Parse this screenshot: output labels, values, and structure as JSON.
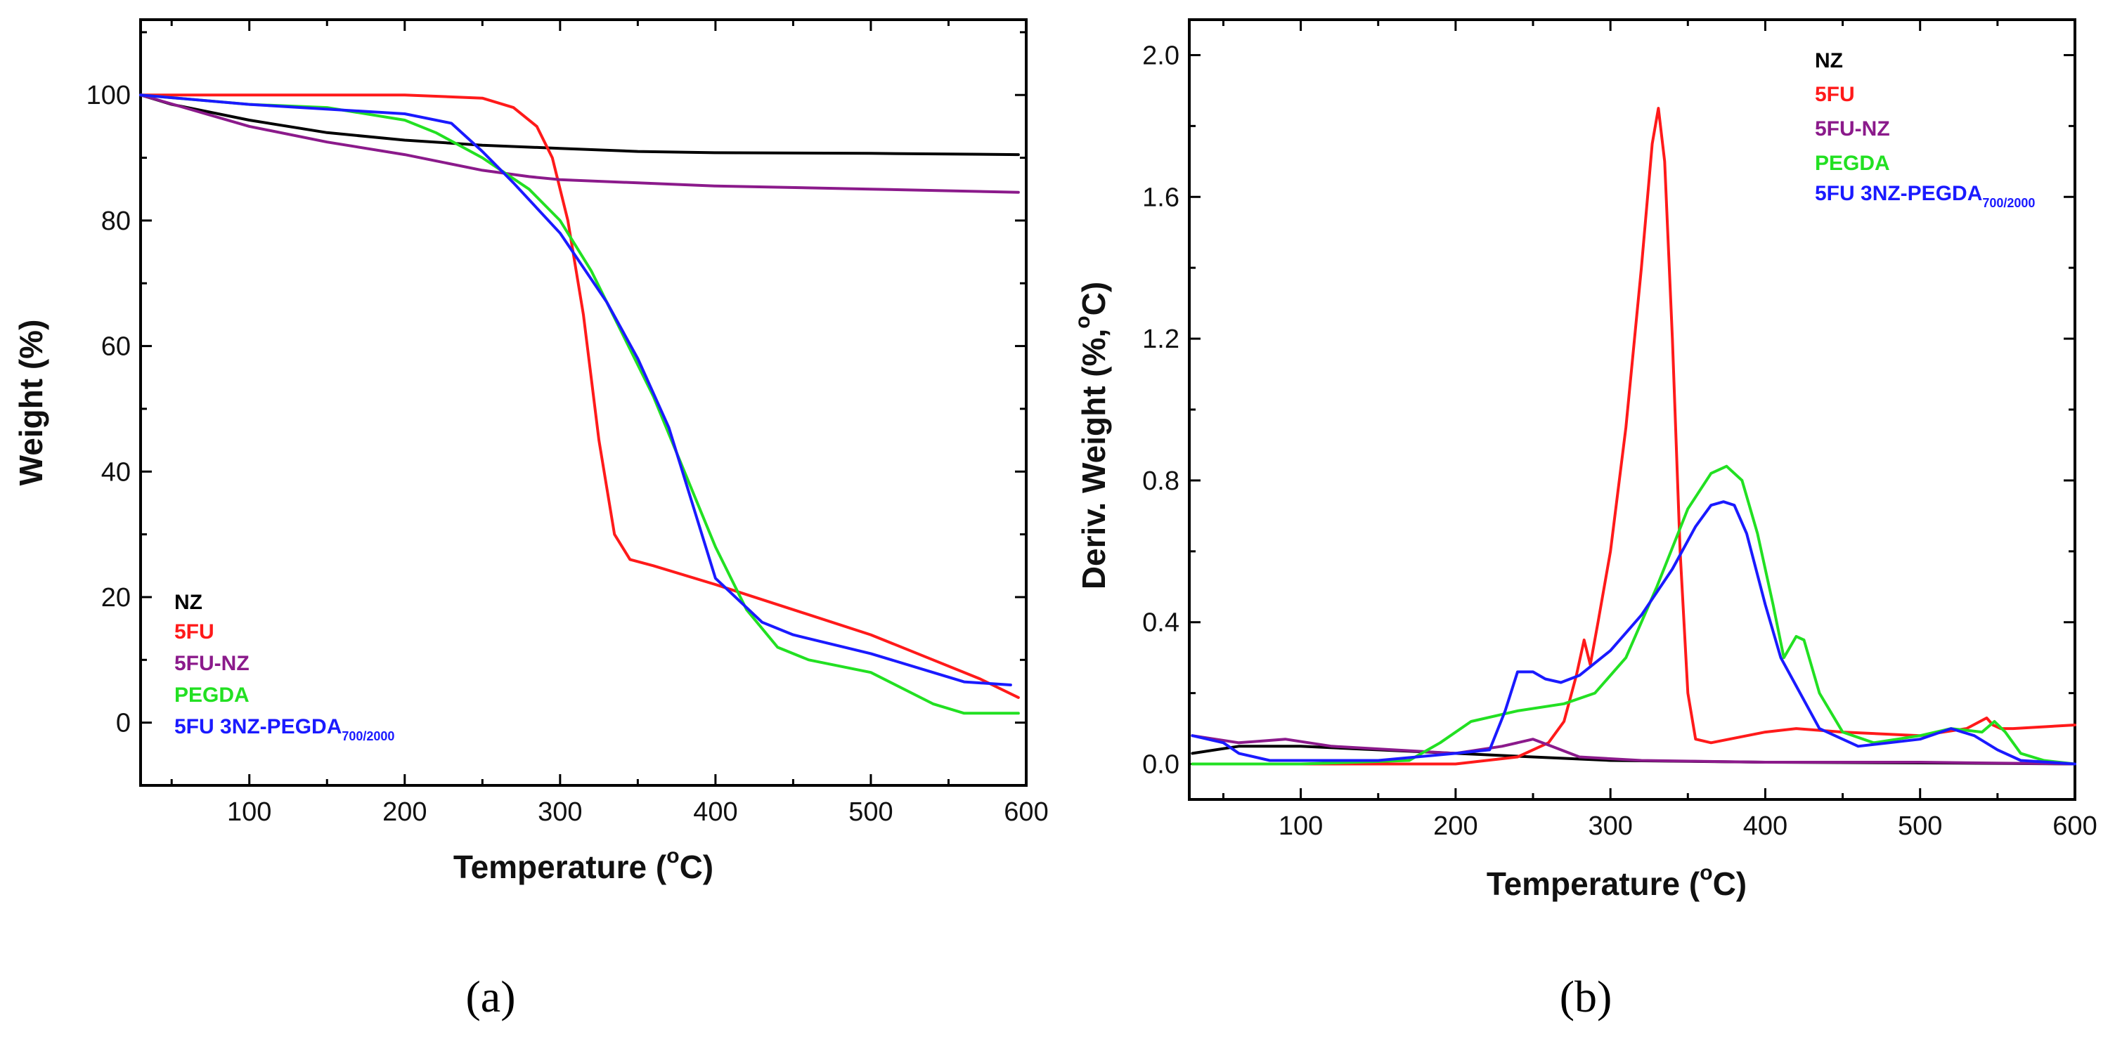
{
  "chart_data": [
    {
      "type": "line",
      "panel_label": "(a)",
      "title": "",
      "xlabel": "Temperature (°C)",
      "xlabel_main": "Temperature (",
      "xlabel_sup": "o",
      "xlabel_end": "C)",
      "ylabel": "Weight (%)",
      "xlim": [
        30,
        600
      ],
      "ylim": [
        -10,
        112
      ],
      "xticks": [
        100,
        200,
        300,
        400,
        500,
        600
      ],
      "yticks": [
        0,
        20,
        40,
        60,
        80,
        100
      ],
      "legend_position": "bottom-left",
      "legend": [
        {
          "name": "NZ",
          "color": "#000000"
        },
        {
          "name": "5FU",
          "color": "#ff1a1a"
        },
        {
          "name": "5FU-NZ",
          "color": "#8b1a8b"
        },
        {
          "name": "PEGDA",
          "color": "#22e022"
        },
        {
          "name": "5FU 3NZ-PEGDA",
          "sub": "700/2000",
          "color": "#1a1aff"
        }
      ],
      "series": [
        {
          "name": "NZ",
          "color": "#000000",
          "x": [
            30,
            50,
            100,
            150,
            200,
            250,
            300,
            350,
            400,
            500,
            595
          ],
          "y": [
            100,
            98.5,
            96,
            94,
            92.8,
            92,
            91.5,
            91,
            90.8,
            90.7,
            90.5
          ]
        },
        {
          "name": "5FU",
          "color": "#ff1a1a",
          "x": [
            30,
            100,
            200,
            250,
            270,
            285,
            295,
            305,
            315,
            325,
            335,
            345,
            360,
            400,
            450,
            500,
            540,
            570,
            595
          ],
          "y": [
            100,
            100,
            100,
            99.5,
            98,
            95,
            90,
            80,
            65,
            45,
            30,
            26,
            25,
            22,
            18,
            14,
            10,
            7,
            4
          ]
        },
        {
          "name": "5FU-NZ",
          "color": "#8b1a8b",
          "x": [
            30,
            100,
            150,
            200,
            250,
            280,
            300,
            350,
            400,
            500,
            595
          ],
          "y": [
            100,
            95,
            92.5,
            90.5,
            88,
            87,
            86.5,
            86,
            85.5,
            85,
            84.5
          ]
        },
        {
          "name": "PEGDA",
          "color": "#22e022",
          "x": [
            30,
            100,
            150,
            200,
            220,
            250,
            280,
            300,
            320,
            340,
            360,
            380,
            400,
            420,
            440,
            460,
            500,
            540,
            560,
            595
          ],
          "y": [
            100,
            98.5,
            98,
            96,
            94,
            90,
            85,
            80,
            72,
            62,
            52,
            40,
            28,
            18,
            12,
            10,
            8,
            3,
            1.5,
            1.5
          ]
        },
        {
          "name": "5FU 3NZ-PEGDA700/2000",
          "color": "#1a1aff",
          "x": [
            30,
            100,
            200,
            230,
            250,
            270,
            300,
            330,
            350,
            370,
            400,
            430,
            450,
            500,
            540,
            560,
            590
          ],
          "y": [
            100,
            98.5,
            97,
            95.5,
            91,
            86,
            78,
            67,
            58,
            47,
            23,
            16,
            14,
            11,
            8,
            6.5,
            6
          ]
        }
      ]
    },
    {
      "type": "line",
      "panel_label": "(b)",
      "title": "",
      "xlabel": "Temperature (°C)",
      "xlabel_main": "Temperature (",
      "xlabel_sup": "o",
      "xlabel_end": "C)",
      "ylabel": "Deriv. Weight (%,°C)",
      "ylabel_main": "Deriv. Weight (%,",
      "ylabel_sup": "o",
      "ylabel_end": "C)",
      "xlim": [
        28,
        600
      ],
      "ylim": [
        -0.1,
        2.1
      ],
      "xticks": [
        100,
        200,
        300,
        400,
        500,
        600
      ],
      "yticks": [
        "0.0",
        "0.4",
        "0.8",
        "1.2",
        "1.6",
        "2.0"
      ],
      "legend_position": "top-right",
      "legend": [
        {
          "name": "NZ",
          "color": "#000000"
        },
        {
          "name": "5FU",
          "color": "#ff1a1a"
        },
        {
          "name": "5FU-NZ",
          "color": "#8b1a8b"
        },
        {
          "name": "PEGDA",
          "color": "#22e022"
        },
        {
          "name": "5FU 3NZ-PEGDA",
          "sub": "700/2000",
          "color": "#1a1aff"
        }
      ],
      "series": [
        {
          "name": "NZ",
          "color": "#000000",
          "x": [
            30,
            60,
            100,
            150,
            200,
            250,
            300,
            400,
            500,
            600
          ],
          "y": [
            0.03,
            0.05,
            0.05,
            0.04,
            0.03,
            0.02,
            0.01,
            0.005,
            0.003,
            0.0
          ]
        },
        {
          "name": "5FU",
          "color": "#ff1a1a",
          "x": [
            30,
            200,
            240,
            260,
            270,
            278,
            283,
            287,
            292,
            300,
            310,
            320,
            327,
            331,
            335,
            340,
            345,
            350,
            355,
            365,
            400,
            420,
            450,
            500,
            530,
            543,
            547,
            552,
            560,
            600
          ],
          "y": [
            0.0,
            0.0,
            0.02,
            0.06,
            0.12,
            0.25,
            0.35,
            0.28,
            0.4,
            0.6,
            0.95,
            1.4,
            1.75,
            1.85,
            1.7,
            1.2,
            0.6,
            0.2,
            0.07,
            0.06,
            0.09,
            0.1,
            0.09,
            0.08,
            0.1,
            0.13,
            0.11,
            0.1,
            0.1,
            0.11
          ]
        },
        {
          "name": "5FU-NZ",
          "color": "#8b1a8b",
          "x": [
            30,
            60,
            90,
            120,
            160,
            200,
            230,
            250,
            262,
            280,
            320,
            400,
            500,
            600
          ],
          "y": [
            0.08,
            0.06,
            0.07,
            0.05,
            0.04,
            0.03,
            0.05,
            0.07,
            0.05,
            0.02,
            0.01,
            0.005,
            0.005,
            0.0
          ]
        },
        {
          "name": "PEGDA",
          "color": "#22e022",
          "x": [
            30,
            100,
            170,
            190,
            210,
            240,
            270,
            290,
            310,
            330,
            350,
            365,
            375,
            385,
            395,
            405,
            412,
            420,
            425,
            435,
            450,
            470,
            500,
            520,
            540,
            548,
            555,
            565,
            580,
            600
          ],
          "y": [
            0.0,
            0.0,
            0.01,
            0.06,
            0.12,
            0.15,
            0.17,
            0.2,
            0.3,
            0.5,
            0.72,
            0.82,
            0.84,
            0.8,
            0.65,
            0.45,
            0.3,
            0.36,
            0.35,
            0.2,
            0.09,
            0.06,
            0.08,
            0.1,
            0.09,
            0.12,
            0.09,
            0.03,
            0.01,
            0.0
          ]
        },
        {
          "name": "5FU 3NZ-PEGDA700/2000",
          "color": "#1a1aff",
          "x": [
            30,
            50,
            60,
            80,
            150,
            200,
            222,
            232,
            240,
            250,
            258,
            268,
            280,
            300,
            320,
            340,
            355,
            365,
            373,
            380,
            388,
            400,
            410,
            420,
            435,
            460,
            480,
            500,
            520,
            535,
            550,
            565,
            600
          ],
          "y": [
            0.08,
            0.06,
            0.03,
            0.01,
            0.01,
            0.03,
            0.04,
            0.15,
            0.26,
            0.26,
            0.24,
            0.23,
            0.25,
            0.32,
            0.42,
            0.55,
            0.67,
            0.73,
            0.74,
            0.73,
            0.65,
            0.45,
            0.3,
            0.22,
            0.1,
            0.05,
            0.06,
            0.07,
            0.1,
            0.08,
            0.04,
            0.01,
            0.0
          ]
        }
      ]
    }
  ]
}
